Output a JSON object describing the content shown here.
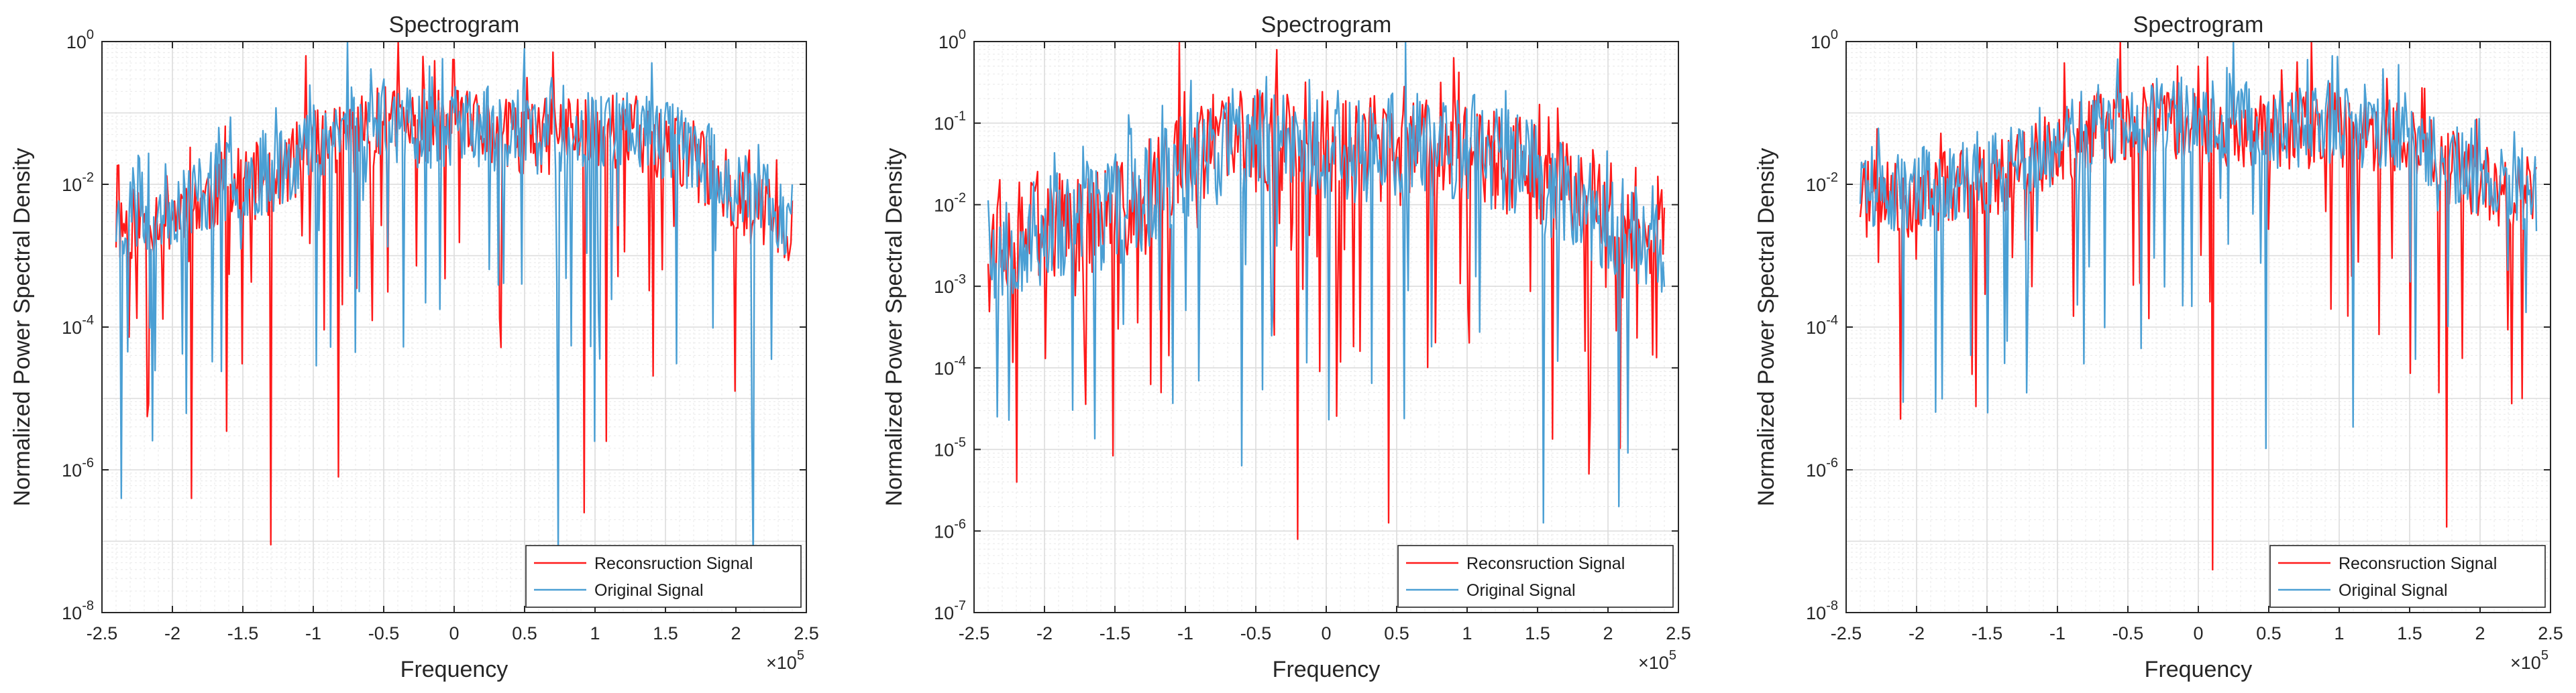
{
  "figure": {
    "colors": {
      "reconstruction": "#ff1a1a",
      "original": "#4a9fd4",
      "grid_major": "#dcdcdc",
      "grid_minor": "#ececec",
      "axis": "#262626"
    },
    "chart_data": [
      {
        "type": "line",
        "title": "Spectrogram",
        "xlabel": "Frequency",
        "ylabel": "Normalized Power Spectral Density",
        "x_exponent_label": "×10",
        "x_exponent": "5",
        "xlim": [
          -2.5,
          2.5
        ],
        "xticks": [
          "-2.5",
          "-2",
          "-1.5",
          "-1",
          "-0.5",
          "0",
          "0.5",
          "1",
          "1.5",
          "2",
          "2.5"
        ],
        "ylim_log10": [
          -8,
          0
        ],
        "yticks_exp": [
          "-8",
          "-6",
          "-4",
          "-2",
          "0"
        ],
        "yscale": "log",
        "legend_placement": "bottom-right",
        "series": [
          {
            "name": "Reconsruction Signal",
            "x_range": [
              -2.4,
              2.4
            ],
            "baseline_log": [
              -2.6,
              -2.4,
              -2.1,
              -1.9,
              -1.4,
              -1.2,
              -1.2,
              -1.25,
              -1.4,
              -1.2,
              -1.3,
              -1.6,
              -2.2,
              -2.6
            ],
            "noise_amplitude": 0.55,
            "seed": 11,
            "peaks": [
              {
                "x": -1.3,
                "log": -7.05
              },
              {
                "x": -1.86,
                "log": -6.4
              },
              {
                "x": -0.82,
                "log": -6.1
              },
              {
                "x": 0.92,
                "log": -6.6
              },
              {
                "x": 1.08,
                "log": -5.6
              },
              {
                "x": -0.4,
                "log": 0
              },
              {
                "x": -1.05,
                "log": -0.2
              },
              {
                "x": 0.7,
                "log": -0.15
              }
            ]
          },
          {
            "name": "Original Signal",
            "x_range": [
              -2.4,
              2.4
            ],
            "baseline_log": [
              -2.5,
              -2.3,
              -2.0,
              -1.8,
              -1.3,
              -1.1,
              -1.2,
              -1.2,
              -1.3,
              -1.15,
              -1.2,
              -1.5,
              -2.1,
              -2.5
            ],
            "noise_amplitude": 0.6,
            "seed": 23,
            "peaks": [
              {
                "x": -2.36,
                "log": -6.4
              },
              {
                "x": 0.74,
                "log": -7.2
              },
              {
                "x": 2.12,
                "log": -7.3
              },
              {
                "x": 1.0,
                "log": -5.6
              },
              {
                "x": -0.76,
                "log": 0
              },
              {
                "x": 0.5,
                "log": -0.1
              },
              {
                "x": 1.4,
                "log": -0.3
              }
            ]
          }
        ]
      },
      {
        "type": "line",
        "title": "Spectrogram",
        "xlabel": "Frequency",
        "ylabel": "Normalized Power Spectral Density",
        "x_exponent_label": "×10",
        "x_exponent": "5",
        "xlim": [
          -2.5,
          2.5
        ],
        "xticks": [
          "-2.5",
          "-2",
          "-1.5",
          "-1",
          "-0.5",
          "0",
          "0.5",
          "1",
          "1.5",
          "2",
          "2.5"
        ],
        "ylim_log10": [
          -7,
          0
        ],
        "yticks_exp": [
          "-7",
          "-6",
          "-5",
          "-4",
          "-3",
          "-2",
          "-1",
          "0"
        ],
        "yscale": "log",
        "legend_placement": "bottom-right",
        "series": [
          {
            "name": "Reconsruction Signal",
            "x_range": [
              -2.4,
              2.4
            ],
            "baseline_log": [
              -2.4,
              -2.3,
              -2.2,
              -2.0,
              -1.3,
              -1.2,
              -1.2,
              -1.3,
              -1.4,
              -1.3,
              -1.5,
              -1.8,
              -2.2,
              -2.3
            ],
            "noise_amplitude": 0.65,
            "seed": 37,
            "peaks": [
              {
                "x": -2.2,
                "log": -5.4
              },
              {
                "x": -0.2,
                "log": -6.1
              },
              {
                "x": 0.44,
                "log": -5.9
              },
              {
                "x": 1.86,
                "log": -5.3
              },
              {
                "x": -1.04,
                "log": 0
              },
              {
                "x": -0.35,
                "log": -0.1
              },
              {
                "x": 0.9,
                "log": -0.2
              }
            ]
          },
          {
            "name": "Original Signal",
            "x_range": [
              -2.4,
              2.4
            ],
            "baseline_log": [
              -2.5,
              -2.4,
              -2.2,
              -1.9,
              -1.4,
              -1.2,
              -1.2,
              -1.3,
              -1.3,
              -1.3,
              -1.4,
              -1.8,
              -2.3,
              -2.5
            ],
            "noise_amplitude": 0.7,
            "seed": 53,
            "peaks": [
              {
                "x": -2.34,
                "log": -4.6
              },
              {
                "x": 1.54,
                "log": -5.9
              },
              {
                "x": 2.08,
                "log": -5.7
              },
              {
                "x": 0.56,
                "log": 0
              },
              {
                "x": -1.4,
                "log": -0.9
              },
              {
                "x": -0.6,
                "log": -5.2
              }
            ]
          }
        ]
      },
      {
        "type": "line",
        "title": "Spectrogram",
        "xlabel": "Frequency",
        "ylabel": "Normalized Power Spectral Density",
        "x_exponent_label": "×10",
        "x_exponent": "5",
        "xlim": [
          -2.5,
          2.5
        ],
        "xticks": [
          "-2.5",
          "-2",
          "-1.5",
          "-1",
          "-0.5",
          "0",
          "0.5",
          "1",
          "1.5",
          "2",
          "2.5"
        ],
        "ylim_log10": [
          -8,
          0
        ],
        "yticks_exp": [
          "-8",
          "-6",
          "-4",
          "-2",
          "0"
        ],
        "yscale": "log",
        "legend_placement": "bottom-right",
        "series": [
          {
            "name": "Reconsruction Signal",
            "x_range": [
              -2.4,
              2.4
            ],
            "baseline_log": [
              -2.2,
              -2.2,
              -2.0,
              -1.8,
              -1.4,
              -1.2,
              -1.1,
              -1.2,
              -1.3,
              -1.2,
              -1.3,
              -1.6,
              -2.0,
              -2.2
            ],
            "noise_amplitude": 0.55,
            "seed": 71,
            "peaks": [
              {
                "x": 0.1,
                "log": -7.4
              },
              {
                "x": 1.76,
                "log": -6.8
              },
              {
                "x": 2.3,
                "log": -5.0
              },
              {
                "x": -0.55,
                "log": 0
              },
              {
                "x": 0.8,
                "log": 0
              },
              {
                "x": -0.95,
                "log": -0.3
              }
            ]
          },
          {
            "name": "Original Signal",
            "x_range": [
              -2.4,
              2.4
            ],
            "baseline_log": [
              -2.0,
              -2.1,
              -1.9,
              -1.7,
              -1.3,
              -1.1,
              -1.1,
              -1.1,
              -1.2,
              -1.1,
              -1.2,
              -1.5,
              -1.9,
              -2.1
            ],
            "noise_amplitude": 0.6,
            "seed": 89,
            "peaks": [
              {
                "x": 0.48,
                "log": -5.7
              },
              {
                "x": -1.5,
                "log": -5.2
              },
              {
                "x": 1.1,
                "log": -5.4
              },
              {
                "x": 0.25,
                "log": 0
              },
              {
                "x": 0.95,
                "log": -0.2
              }
            ]
          }
        ]
      }
    ]
  }
}
